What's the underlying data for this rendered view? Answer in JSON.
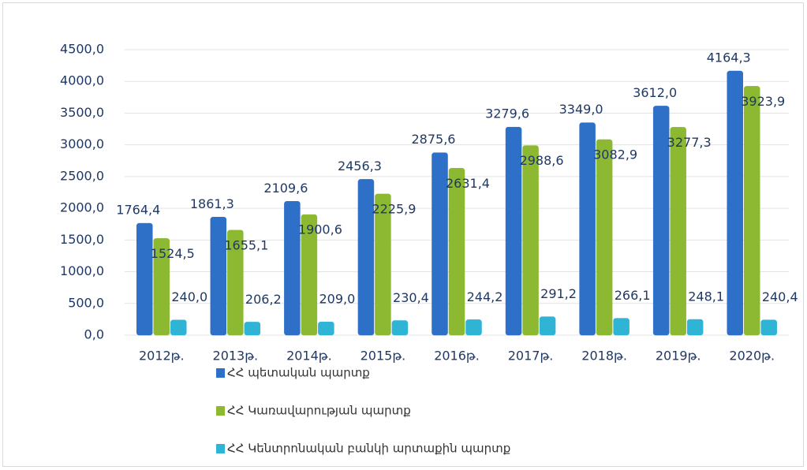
{
  "chart_data": {
    "type": "bar",
    "categories": [
      "2012թ.",
      "2013թ.",
      "2014թ.",
      "2015թ.",
      "2016թ.",
      "2017թ.",
      "2018թ.",
      "2019թ.",
      "2020թ."
    ],
    "series": [
      {
        "name": "ՀՀ պետական պարտք",
        "color": "#2e6fc8",
        "values": [
          1764.4,
          1861.3,
          2109.6,
          2456.3,
          2875.6,
          3279.6,
          3349.0,
          3612.0,
          4164.3
        ],
        "value_labels": [
          "1764,4",
          "1861,3",
          "2109,6",
          "2456,3",
          "2875,6",
          "3279,6",
          "3349,0",
          "3612,0",
          "4164,3"
        ]
      },
      {
        "name": "ՀՀ Կառավարության պարտք",
        "color": "#8cb832",
        "values": [
          1524.5,
          1655.1,
          1900.6,
          2225.9,
          2631.4,
          2988.6,
          3082.9,
          3277.3,
          3923.9
        ],
        "value_labels": [
          "1524,5",
          "1655,1",
          "1900,6",
          "2225,9",
          "2631,4",
          "2988,6",
          "3082,9",
          "3277,3",
          "3923,9"
        ]
      },
      {
        "name": "ՀՀ Կենտրոնական բանկի արտաքին պարտք",
        "color": "#2fb4d6",
        "values": [
          240.0,
          206.2,
          209.0,
          230.4,
          244.2,
          291.2,
          266.1,
          248.1,
          240.4
        ],
        "value_labels": [
          "240,0",
          "206,2",
          "209,0",
          "230,4",
          "244,2",
          "291,2",
          "266,1",
          "248,1",
          "240,4"
        ]
      }
    ],
    "ylim": [
      0,
      4500
    ],
    "yticks": [
      {
        "value": 0,
        "label": "0,0"
      },
      {
        "value": 500,
        "label": "500,0"
      },
      {
        "value": 1000,
        "label": "1000,0"
      },
      {
        "value": 1500,
        "label": "1500,0"
      },
      {
        "value": 2000,
        "label": "2000,0"
      },
      {
        "value": 2500,
        "label": "2500,0"
      },
      {
        "value": 3000,
        "label": "3000,0"
      },
      {
        "value": 3500,
        "label": "3500,0"
      },
      {
        "value": 4000,
        "label": "4000,0"
      },
      {
        "value": 4500,
        "label": "4500,0"
      }
    ],
    "grid": true
  }
}
